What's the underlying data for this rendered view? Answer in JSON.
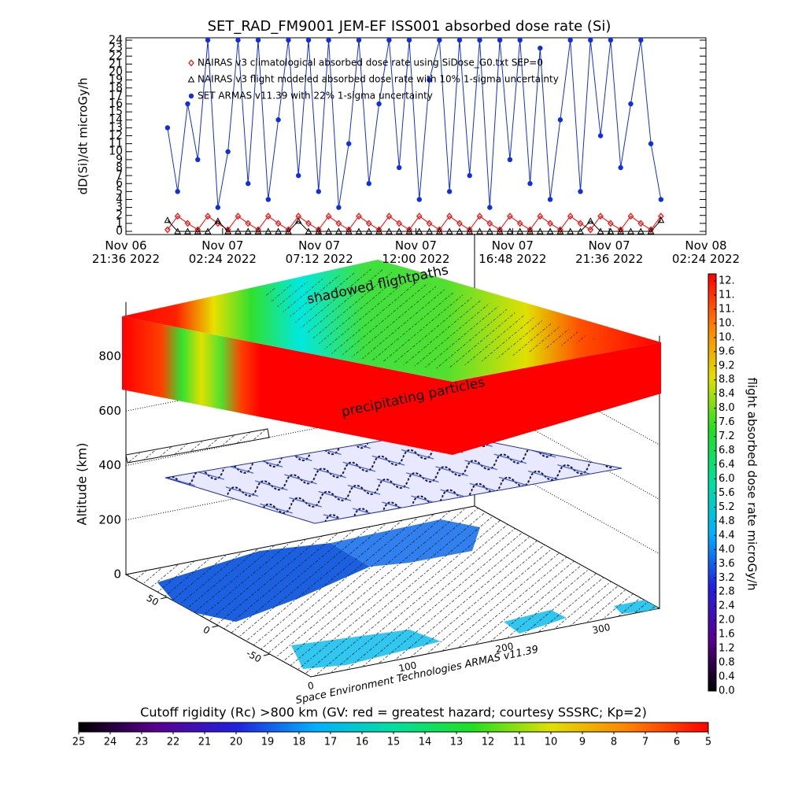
{
  "chart_data": [
    {
      "type": "line",
      "title": "SET_RAD_FM9001  JEM-EF ISS001 absorbed dose rate (Si)",
      "ylabel": "dD(Si)/dt microGy/h",
      "x": [
        "2022-11-06T23:40",
        "2022-11-07T00:10",
        "2022-11-07T00:40",
        "2022-11-07T01:10",
        "2022-11-07T01:40",
        "2022-11-07T02:10",
        "2022-11-07T02:40",
        "2022-11-07T03:10",
        "2022-11-07T03:40",
        "2022-11-07T04:10",
        "2022-11-07T04:40",
        "2022-11-07T05:10",
        "2022-11-07T05:40",
        "2022-11-07T06:10",
        "2022-11-07T06:40",
        "2022-11-07T07:10",
        "2022-11-07T07:40",
        "2022-11-07T08:10",
        "2022-11-07T08:40",
        "2022-11-07T09:10",
        "2022-11-07T09:40",
        "2022-11-07T10:10",
        "2022-11-07T10:40",
        "2022-11-07T11:10",
        "2022-11-07T11:40",
        "2022-11-07T12:10",
        "2022-11-07T12:40",
        "2022-11-07T13:10",
        "2022-11-07T13:40",
        "2022-11-07T14:10",
        "2022-11-07T14:40",
        "2022-11-07T15:10",
        "2022-11-07T15:40",
        "2022-11-07T16:10",
        "2022-11-07T16:40",
        "2022-11-07T17:10",
        "2022-11-07T17:40",
        "2022-11-07T18:10",
        "2022-11-07T18:40",
        "2022-11-07T19:10",
        "2022-11-07T19:40",
        "2022-11-07T20:10",
        "2022-11-07T20:40",
        "2022-11-07T21:10",
        "2022-11-07T21:40",
        "2022-11-07T22:10",
        "2022-11-07T22:40",
        "2022-11-07T23:10",
        "2022-11-07T23:40",
        "2022-11-08T00:10"
      ],
      "series": [
        {
          "name": "NAIRAS v3 climatological absorbed dose rate using SiDose_G0.txt SEP=0",
          "color": "#ff0000",
          "marker": "diamond",
          "values": [
            0.2,
            1.9,
            1.0,
            0.2,
            1.9,
            1.0,
            0.2,
            1.9,
            1.0,
            0.2,
            1.9,
            1.0,
            0.2,
            1.9,
            1.0,
            0.2,
            1.9,
            1.0,
            0.2,
            1.9,
            1.0,
            0.2,
            1.9,
            1.0,
            0.2,
            1.9,
            1.0,
            0.2,
            1.9,
            1.0,
            0.2,
            1.9,
            1.0,
            0.2,
            1.9,
            1.0,
            0.2,
            1.9,
            1.0,
            0.2,
            1.9,
            1.0,
            0.2,
            1.9,
            1.0,
            0.2,
            1.9,
            1.0,
            0.2,
            1.9
          ]
        },
        {
          "name": "NAIRAS v3 flight modeled absorbed dose rate with 10% 1-sigma uncertainty",
          "color": "#000000",
          "marker": "triangle",
          "values": [
            1.4,
            0,
            0,
            0,
            0,
            1.3,
            0,
            0,
            0,
            0,
            0,
            0,
            0,
            1.3,
            0,
            0,
            0,
            0,
            0,
            0,
            0,
            0,
            0,
            0,
            0,
            0,
            0,
            0,
            0,
            0,
            0,
            0,
            0,
            0,
            0,
            0,
            0,
            0,
            0,
            0,
            0,
            0,
            1.3,
            0,
            0,
            0,
            0,
            0,
            0,
            1.4
          ]
        },
        {
          "name": "SET ARMAS v11.39 with 22% 1-sigma uncertainty",
          "color": "#1030e0",
          "marker": "circle",
          "values": [
            13,
            5,
            16,
            9,
            24,
            3,
            10,
            24,
            6,
            24,
            4,
            14,
            24,
            7,
            24,
            5,
            24,
            3,
            11,
            24,
            6,
            16,
            24,
            8,
            24,
            4,
            19,
            24,
            5,
            24,
            7,
            24,
            3,
            24,
            9,
            24,
            6,
            23,
            4,
            14,
            24,
            5,
            24,
            12,
            24,
            8,
            16,
            24,
            11,
            4
          ]
        }
      ],
      "xlim": [
        "2022-11-06T21:36",
        "2022-11-08T02:24"
      ],
      "xticks": [
        {
          "value": "2022-11-06T21:36",
          "label": "Nov 06\n21:36 2022"
        },
        {
          "value": "2022-11-07T02:24",
          "label": "Nov 07\n02:24 2022"
        },
        {
          "value": "2022-11-07T07:12",
          "label": "Nov 07\n07:12 2022"
        },
        {
          "value": "2022-11-07T12:00",
          "label": "Nov 07\n12:00 2022"
        },
        {
          "value": "2022-11-07T16:48",
          "label": "Nov 07\n16:48 2022"
        },
        {
          "value": "2022-11-07T21:36",
          "label": "Nov 07\n21:36 2022"
        },
        {
          "value": "2022-11-08T02:24",
          "label": "Nov 08\n02:24 2022"
        }
      ],
      "ylim": [
        -0.4,
        24.3
      ],
      "yticks": [
        0,
        1,
        2,
        3,
        4,
        5,
        6,
        7,
        8,
        9,
        10,
        11,
        12,
        13,
        14,
        15,
        16,
        17,
        18,
        19,
        20,
        21,
        22,
        23,
        24
      ]
    },
    {
      "type": "scene3d",
      "annotations": [
        "shadowed flightpaths",
        "precipitating particles"
      ],
      "zlabel": "Altitude (km)",
      "zlim": [
        0,
        1000
      ],
      "zticks": [
        0,
        200,
        400,
        600,
        800
      ],
      "xlim": [
        0,
        360
      ],
      "xticks": [
        0,
        100,
        200,
        300
      ],
      "ylim": [
        90,
        -90
      ],
      "yticks": [
        -50,
        0,
        50
      ],
      "credit": "Space Environment Technologies ARMAS v11.39",
      "colorbar": {
        "label": "flight absorbed dose rate microGy/h",
        "lim": [
          0,
          11.8
        ],
        "colors": [
          "#000000",
          "#5a0090",
          "#2020e0",
          "#00b0ff",
          "#00e0a0",
          "#20e020",
          "#e0e000",
          "#ff8000",
          "#ff0000"
        ],
        "ticks": [
          {
            "value": 0,
            "label": "0.0"
          },
          0.4,
          0.8,
          1.2,
          1.6,
          {
            "value": 2,
            "label": "2.0"
          },
          2.4,
          2.8,
          3.2,
          3.6,
          {
            "value": 4,
            "label": "4.0"
          },
          4.4,
          4.8,
          5.2,
          5.6,
          {
            "value": 6,
            "label": "6.0"
          },
          6.4,
          6.8,
          7.2,
          7.6,
          {
            "value": 8,
            "label": "8.0"
          },
          8.4,
          8.8,
          9.2,
          9.6,
          {
            "value": 10,
            "label": "10."
          },
          {
            "value": 10.4,
            "label": "10."
          },
          {
            "value": 10.8,
            "label": "11."
          },
          {
            "value": 11.2,
            "label": "11."
          },
          {
            "value": 11.6,
            "label": "12."
          }
        ]
      },
      "colorbar2": {
        "label": "Cutoff rigidity (Rc) >800 km (GV: red = greatest hazard; courtesy SSSRC; Kp=2)",
        "lim": [
          25,
          5
        ],
        "colors": [
          "#000000",
          "#5a0090",
          "#2020e0",
          "#00b0ff",
          "#00e0a0",
          "#20e020",
          "#e0e000",
          "#ff8000",
          "#ff0000"
        ],
        "ticks": [
          25,
          24,
          23,
          22,
          21,
          20,
          19,
          18,
          17,
          16,
          15,
          14,
          13,
          12,
          11,
          10,
          9,
          8,
          7,
          6,
          5
        ]
      }
    }
  ]
}
